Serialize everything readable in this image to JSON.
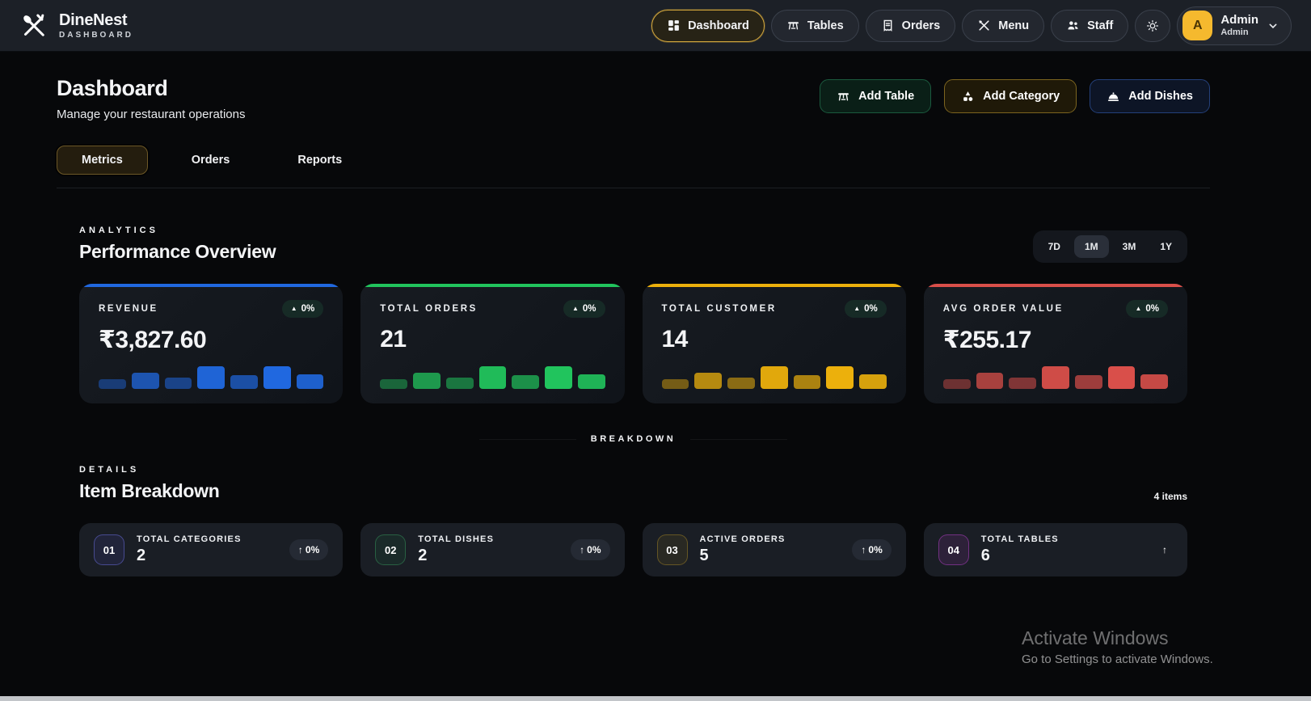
{
  "brand": {
    "name": "DineNest",
    "subtitle": "DASHBOARD"
  },
  "nav": {
    "items": [
      {
        "label": "Dashboard",
        "icon": "dashboard-grid-icon",
        "active": true
      },
      {
        "label": "Tables",
        "icon": "table-icon",
        "active": false
      },
      {
        "label": "Orders",
        "icon": "receipt-icon",
        "active": false
      },
      {
        "label": "Menu",
        "icon": "utensils-icon",
        "active": false
      },
      {
        "label": "Staff",
        "icon": "people-icon",
        "active": false
      }
    ],
    "theme_toggle_icon": "sun-icon",
    "profile": {
      "initial": "A",
      "name": "Admin",
      "role": "Admin"
    }
  },
  "page": {
    "title": "Dashboard",
    "subtitle": "Manage your restaurant operations",
    "actions": [
      {
        "label": "Add Table",
        "icon": "table-icon"
      },
      {
        "label": "Add Category",
        "icon": "shapes-icon"
      },
      {
        "label": "Add Dishes",
        "icon": "cloche-icon"
      }
    ],
    "tabs": [
      {
        "label": "Metrics",
        "active": true
      },
      {
        "label": "Orders",
        "active": false
      },
      {
        "label": "Reports",
        "active": false
      }
    ]
  },
  "analytics": {
    "eyebrow": "ANALYTICS",
    "title": "Performance Overview",
    "ranges": [
      {
        "label": "7D",
        "active": false
      },
      {
        "label": "1M",
        "active": true
      },
      {
        "label": "3M",
        "active": false
      },
      {
        "label": "1Y",
        "active": false
      }
    ],
    "cards": [
      {
        "label": "REVENUE",
        "value": "₹3,827.60",
        "badge": "0%",
        "accent": "#2068e0",
        "spark": [
          [
            42,
            0.45
          ],
          [
            70,
            0.75
          ],
          [
            50,
            0.55
          ],
          [
            100,
            0.95
          ],
          [
            62,
            0.7
          ],
          [
            100,
            1
          ],
          [
            66,
            0.9
          ]
        ]
      },
      {
        "label": "TOTAL ORDERS",
        "value": "21",
        "badge": "0%",
        "accent": "#21c45d",
        "spark": [
          [
            42,
            0.45
          ],
          [
            70,
            0.75
          ],
          [
            50,
            0.55
          ],
          [
            100,
            0.95
          ],
          [
            62,
            0.7
          ],
          [
            100,
            1
          ],
          [
            66,
            0.9
          ]
        ]
      },
      {
        "label": "TOTAL CUSTOMER",
        "value": "14",
        "badge": "0%",
        "accent": "#ecb00c",
        "spark": [
          [
            42,
            0.45
          ],
          [
            70,
            0.75
          ],
          [
            50,
            0.55
          ],
          [
            100,
            0.95
          ],
          [
            62,
            0.7
          ],
          [
            100,
            1
          ],
          [
            66,
            0.9
          ]
        ]
      },
      {
        "label": "AVG ORDER VALUE",
        "value": "₹255.17",
        "badge": "0%",
        "accent": "#d94f4a",
        "spark": [
          [
            42,
            0.45
          ],
          [
            70,
            0.75
          ],
          [
            50,
            0.55
          ],
          [
            100,
            0.95
          ],
          [
            62,
            0.7
          ],
          [
            100,
            1
          ],
          [
            66,
            0.9
          ]
        ]
      }
    ]
  },
  "breakdown": {
    "divider_label": "BREAKDOWN",
    "eyebrow": "DETAILS",
    "title": "Item Breakdown",
    "count_label": "4 items",
    "cards": [
      {
        "index": "01",
        "label": "TOTAL CATEGORIES",
        "value": "2",
        "badge": "0%",
        "arrow": "↑",
        "tintbg": "rgba(99,102,241,0.10)",
        "tintbd": "rgba(120,122,250,0.45)"
      },
      {
        "index": "02",
        "label": "TOTAL DISHES",
        "value": "2",
        "badge": "0%",
        "arrow": "↑",
        "tintbg": "rgba(34,197,94,0.08)",
        "tintbd": "rgba(74,222,128,0.30)"
      },
      {
        "index": "03",
        "label": "ACTIVE ORDERS",
        "value": "5",
        "badge": "0%",
        "arrow": "↑",
        "tintbg": "rgba(234,179,8,0.08)",
        "tintbd": "rgba(214,170,40,0.35)"
      },
      {
        "index": "04",
        "label": "TOTAL TABLES",
        "value": "6",
        "badge": "",
        "arrow": "↑",
        "tintbg": "rgba(217,70,239,0.10)",
        "tintbd": "rgba(217,70,239,0.40)"
      }
    ]
  },
  "watermark": {
    "line1": "Activate Windows",
    "line2": "Go to Settings to activate Windows."
  }
}
